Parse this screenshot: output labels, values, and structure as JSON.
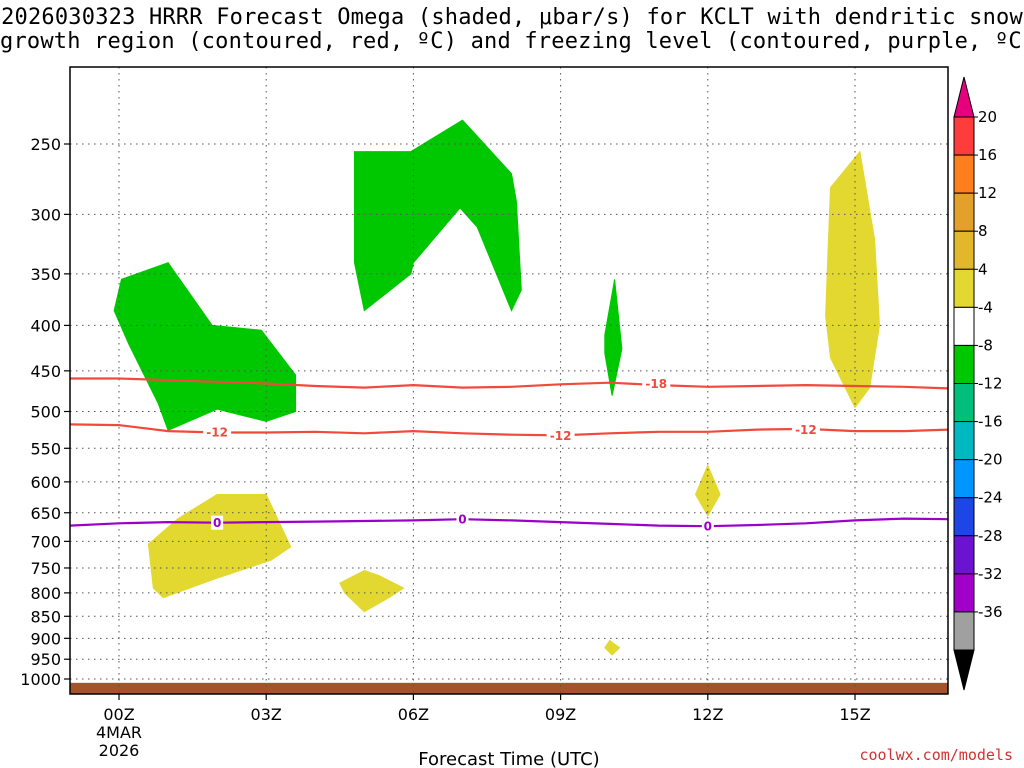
{
  "title_line1": "2026030323 HRRR Forecast Omega (shaded, μbar/s) for KCLT with dendritic snow",
  "title_line2": "growth region (contoured, red, ºC) and freezing level (contoured, purple, ºC)",
  "watermark": "coolwx.com/models",
  "chart_data": {
    "type": "time-height cross section",
    "title": "2026030323 HRRR Forecast Omega (shaded, μbar/s) for KCLT with dendritic snow growth region (contoured, red, ºC) and freezing level (contoured, purple, ºC)",
    "xlabel": "Forecast Time (UTC)",
    "ylabel": "",
    "xlim": [
      -0.5,
      17
    ],
    "ylim": [
      1030,
      200
    ],
    "y_scale": "log-pressure (hPa)",
    "grid": true,
    "x_ticks": [
      {
        "x": 0,
        "label": "00Z",
        "sub": [
          "4MAR",
          "2026"
        ]
      },
      {
        "x": 3,
        "label": "03Z",
        "sub": []
      },
      {
        "x": 6,
        "label": "06Z",
        "sub": []
      },
      {
        "x": 9,
        "label": "09Z",
        "sub": []
      },
      {
        "x": 12,
        "label": "12Z",
        "sub": []
      },
      {
        "x": 15,
        "label": "15Z",
        "sub": []
      }
    ],
    "y_ticks": [
      250,
      300,
      350,
      400,
      450,
      500,
      550,
      600,
      650,
      700,
      750,
      800,
      850,
      900,
      950,
      1000
    ],
    "colorbar": {
      "labels": [
        "20",
        "16",
        "12",
        "8",
        "4",
        "-4",
        "-8",
        "-12",
        "-16",
        "-20",
        "-24",
        "-28",
        "-32",
        "-36"
      ],
      "colors": [
        "#ff3c3c",
        "#ff7f1f",
        "#e3a02a",
        "#e3b72a",
        "#e3d830",
        "#ffffff",
        "#00c800",
        "#00bf7a",
        "#00b8c0",
        "#0096ff",
        "#1e46e6",
        "#6a14d2",
        "#a000c8",
        "#a0a0a0"
      ],
      "top_cap": "#e6007e",
      "bottom_cap": "#000000"
    },
    "ground": {
      "color": "#a5532a",
      "p_top": 1010,
      "p_bottom": 1030
    },
    "omega_regions": [
      {
        "level": "-4 to -8",
        "color": "#00c800",
        "points": [
          [
            -0.1,
            385
          ],
          [
            0.05,
            355
          ],
          [
            1.0,
            340
          ],
          [
            1.9,
            400
          ],
          [
            2.9,
            405
          ],
          [
            3.6,
            455
          ],
          [
            3.6,
            500
          ],
          [
            3.0,
            513
          ],
          [
            2.0,
            497
          ],
          [
            1.0,
            525
          ],
          [
            0.8,
            490
          ],
          [
            0.2,
            420
          ]
        ]
      },
      {
        "level": "-4 to -8",
        "color": "#00c800",
        "points": [
          [
            4.8,
            255
          ],
          [
            5.95,
            255
          ],
          [
            7.0,
            235
          ],
          [
            8.0,
            270
          ],
          [
            8.1,
            290
          ],
          [
            8.2,
            365
          ],
          [
            8.0,
            385
          ],
          [
            7.3,
            310
          ],
          [
            6.95,
            295
          ],
          [
            6.0,
            340
          ],
          [
            5.95,
            350
          ],
          [
            5.0,
            385
          ],
          [
            4.8,
            340
          ]
        ]
      },
      {
        "level": "-4 to -8",
        "color": "#00c800",
        "points": [
          [
            9.9,
            410
          ],
          [
            10.1,
            355
          ],
          [
            10.25,
            425
          ],
          [
            10.05,
            480
          ],
          [
            9.9,
            430
          ]
        ]
      },
      {
        "level": "4 to 8",
        "color": "#e3d830",
        "points": [
          [
            14.5,
            280
          ],
          [
            15.1,
            255
          ],
          [
            15.4,
            320
          ],
          [
            15.5,
            400
          ],
          [
            15.3,
            470
          ],
          [
            15.0,
            495
          ],
          [
            14.5,
            435
          ],
          [
            14.4,
            390
          ],
          [
            14.45,
            330
          ]
        ]
      },
      {
        "level": "4 to 8",
        "color": "#e3d830",
        "points": [
          [
            0.6,
            705
          ],
          [
            1.2,
            660
          ],
          [
            2.0,
            620
          ],
          [
            3.0,
            620
          ],
          [
            3.5,
            710
          ],
          [
            3.1,
            735
          ],
          [
            2.0,
            770
          ],
          [
            0.9,
            810
          ],
          [
            0.7,
            790
          ]
        ]
      },
      {
        "level": "4 to 8",
        "color": "#e3d830",
        "points": [
          [
            4.5,
            780
          ],
          [
            5.0,
            755
          ],
          [
            5.3,
            765
          ],
          [
            5.8,
            790
          ],
          [
            5.5,
            810
          ],
          [
            5.0,
            840
          ],
          [
            4.6,
            800
          ]
        ]
      },
      {
        "level": "4 to 8",
        "color": "#e3d830",
        "points": [
          [
            11.75,
            620
          ],
          [
            12.0,
            575
          ],
          [
            12.25,
            620
          ],
          [
            12.0,
            655
          ]
        ]
      },
      {
        "level": "4 to 8",
        "color": "#e3d830",
        "points": [
          [
            9.9,
            922
          ],
          [
            10.0,
            905
          ],
          [
            10.2,
            922
          ],
          [
            10.05,
            940
          ]
        ]
      }
    ],
    "dendritic_contours": [
      {
        "value": -18,
        "label": "-18",
        "color": "#f04a3c",
        "points": [
          [
            -1,
            459
          ],
          [
            0,
            459
          ],
          [
            1,
            461
          ],
          [
            2,
            463
          ],
          [
            3,
            465
          ],
          [
            4,
            468
          ],
          [
            5,
            470
          ],
          [
            6,
            467
          ],
          [
            7,
            470
          ],
          [
            8,
            469
          ],
          [
            9,
            466
          ],
          [
            10,
            464
          ],
          [
            11,
            467
          ],
          [
            12,
            469
          ],
          [
            13,
            468
          ],
          [
            14,
            467
          ],
          [
            15,
            468
          ],
          [
            16,
            469
          ],
          [
            17,
            471
          ]
        ],
        "labels": [
          [
            10.95,
            465
          ]
        ]
      },
      {
        "value": -12,
        "label": "-12",
        "color": "#f04a3c",
        "points": [
          [
            -1,
            517
          ],
          [
            0,
            518
          ],
          [
            1,
            526
          ],
          [
            2,
            528
          ],
          [
            3,
            528
          ],
          [
            4,
            527
          ],
          [
            5,
            529
          ],
          [
            6,
            526
          ],
          [
            7,
            529
          ],
          [
            8,
            531
          ],
          [
            9,
            532
          ],
          [
            10,
            529
          ],
          [
            11,
            527
          ],
          [
            12,
            527
          ],
          [
            13,
            524
          ],
          [
            14,
            523
          ],
          [
            15,
            526
          ],
          [
            16,
            526
          ],
          [
            17,
            524
          ]
        ],
        "labels": [
          [
            2,
            527
          ],
          [
            9,
            532
          ],
          [
            14,
            524
          ]
        ]
      }
    ],
    "freezing_contours": [
      {
        "value": 0,
        "label": "0",
        "color": "#9a00c8",
        "points": [
          [
            -1,
            672
          ],
          [
            0,
            668
          ],
          [
            1,
            666
          ],
          [
            2,
            667
          ],
          [
            3,
            666
          ],
          [
            4,
            665
          ],
          [
            5,
            664
          ],
          [
            6,
            663
          ],
          [
            7,
            661
          ],
          [
            8,
            663
          ],
          [
            9,
            666
          ],
          [
            10,
            669
          ],
          [
            11,
            672
          ],
          [
            12,
            673
          ],
          [
            13,
            671
          ],
          [
            14,
            668
          ],
          [
            15,
            663
          ],
          [
            16,
            660
          ],
          [
            17,
            661
          ]
        ],
        "labels": [
          [
            2,
            667
          ],
          [
            7,
            661
          ],
          [
            12,
            673
          ]
        ]
      }
    ]
  }
}
